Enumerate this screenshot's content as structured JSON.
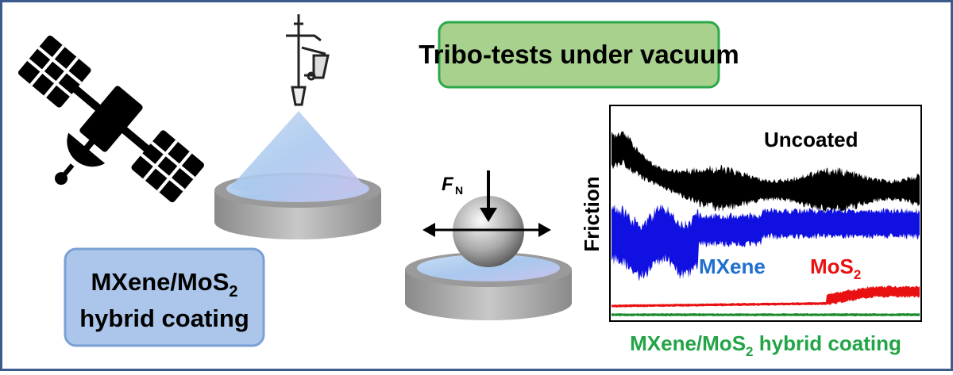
{
  "title_box": {
    "text": "Tribo-tests under vacuum"
  },
  "coating_box": {
    "line1": "MXene/MoS",
    "line1_sub": "2",
    "line2": "hybrid coating"
  },
  "force_label": {
    "symbol": "F",
    "subscript": "N"
  },
  "plot": {
    "y_label": "Friction",
    "curves": [
      {
        "label": "Uncoated",
        "color": "#000000",
        "label_color": "#000000"
      },
      {
        "label": "MXene",
        "color": "#1010e0",
        "label_color": "#1f6fcf"
      },
      {
        "label": "MoS",
        "subscript": "2",
        "color": "#e81010",
        "label_color": "#e81010"
      },
      {
        "label": "MXene/MoS",
        "subscript": "2",
        "rest": " hybrid coating",
        "color": "#1a8a2a",
        "label_color": "#22a447"
      }
    ]
  }
}
